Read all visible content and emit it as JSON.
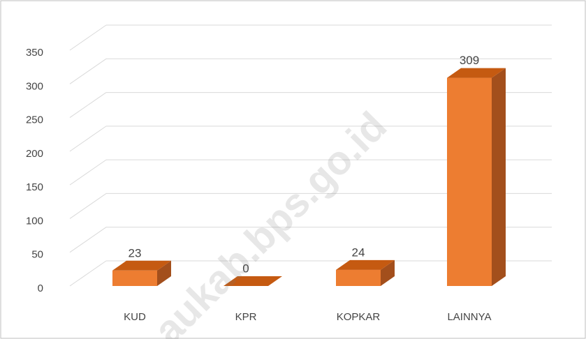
{
  "chart_data": {
    "type": "bar3d",
    "categories": [
      "KUD",
      "KPR",
      "KOPKAR",
      "LAINNYA"
    ],
    "values": [
      23,
      0,
      24,
      309
    ],
    "color": "#ed7d31",
    "ylim": [
      0,
      350
    ],
    "yticks": [
      0,
      50,
      100,
      150,
      200,
      250,
      300,
      350
    ],
    "grid": true,
    "watermark": "aukab.bps.go.id"
  }
}
